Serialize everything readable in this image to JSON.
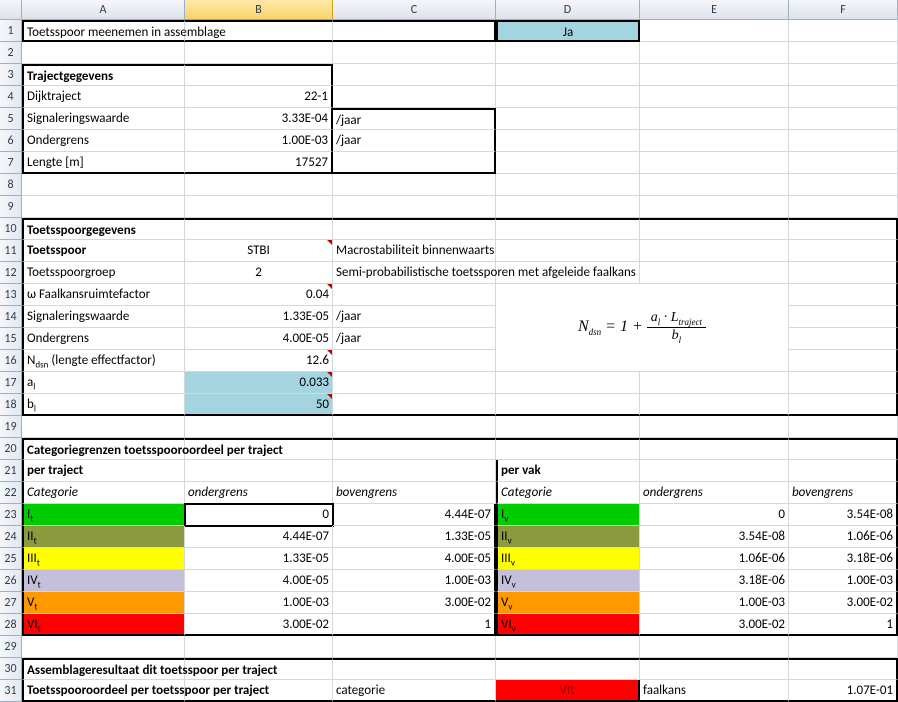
{
  "columns": [
    "",
    "A",
    "B",
    "C",
    "D",
    "E",
    "F"
  ],
  "row1": {
    "A": "Toetsspoor meenemen in assemblage",
    "D": "Ja"
  },
  "row3": {
    "A": "Trajectgegevens"
  },
  "row4": {
    "A": "Dijktraject",
    "B": "22-1"
  },
  "row5": {
    "A": "Signaleringswaarde",
    "B": "3.33E-04",
    "C": "/jaar"
  },
  "row6": {
    "A": "Ondergrens",
    "B": "1.00E-03",
    "C": "/jaar"
  },
  "row7": {
    "A": "Lengte [m]",
    "B": "17527"
  },
  "row10": {
    "A": "Toetsspoorgegevens"
  },
  "row11": {
    "A": "Toetsspoor",
    "B": "STBI",
    "C": "Macrostabiliteit binnenwaarts"
  },
  "row12": {
    "A": "Toetsspoorgroep",
    "B": "2",
    "C": "Semi-probabilistische toetssporen met afgeleide faalkans"
  },
  "row13": {
    "A": "ω Faalkansruimtefactor",
    "B": "0.04"
  },
  "row14": {
    "A": "Signaleringswaarde",
    "B": "1.33E-05",
    "C": "/jaar"
  },
  "row15": {
    "A": "Ondergrens",
    "B": "4.00E-05",
    "C": "/jaar"
  },
  "row16": {
    "A_pre": "N",
    "A_sub": "dsn",
    "A_post": " (lengte effectfactor)",
    "B": "12.6"
  },
  "row17": {
    "A_pre": "a",
    "A_sub": "l",
    "B": "0.033"
  },
  "row18": {
    "A_pre": "b",
    "A_sub": "l",
    "B": "50"
  },
  "row20": {
    "A": "Categoriegrenzen toetsspooroordeel per traject"
  },
  "row21": {
    "A": "per traject",
    "D": "per vak"
  },
  "row22": {
    "A": "Categorie",
    "B": "ondergrens",
    "C": "bovengrens",
    "D": "Categorie",
    "E": "ondergrens",
    "F": "bovengrens"
  },
  "cats": [
    {
      "t": "I",
      "sub": "t",
      "og": "0",
      "bg": "4.44E-07",
      "v": "I",
      "vsub": "v",
      "vog": "0",
      "vbg": "3.54E-08",
      "color_t": "bg-green",
      "color_v": "bg-green"
    },
    {
      "t": "II",
      "sub": "t",
      "og": "4.44E-07",
      "bg": "1.33E-05",
      "v": "II",
      "vsub": "v",
      "vog": "3.54E-08",
      "vbg": "1.06E-06",
      "color_t": "bg-olive",
      "color_v": "bg-olive"
    },
    {
      "t": "III",
      "sub": "t",
      "og": "1.33E-05",
      "bg": "4.00E-05",
      "v": "III",
      "vsub": "v",
      "vog": "1.06E-06",
      "vbg": "3.18E-06",
      "color_t": "bg-yellow",
      "color_v": "bg-yellow"
    },
    {
      "t": "IV",
      "sub": "t",
      "og": "4.00E-05",
      "bg": "1.00E-03",
      "v": "IV",
      "vsub": "v",
      "vog": "3.18E-06",
      "vbg": "1.00E-03",
      "color_t": "bg-lav",
      "color_v": "bg-lav"
    },
    {
      "t": "V",
      "sub": "t",
      "og": "1.00E-03",
      "bg": "3.00E-02",
      "v": "V",
      "vsub": "v",
      "vog": "1.00E-03",
      "vbg": "3.00E-02",
      "color_t": "bg-orange",
      "color_v": "bg-orange"
    },
    {
      "t": "VI",
      "sub": "t",
      "og": "3.00E-02",
      "bg": "1",
      "v": "VI",
      "vsub": "v",
      "vog": "3.00E-02",
      "vbg": "1",
      "color_t": "bg-red",
      "color_v": "bg-red"
    }
  ],
  "row30": {
    "A": "Assemblageresultaat dit toetsspoor per traject"
  },
  "row31": {
    "A": "Toetsspooroordeel per toetsspoor per traject",
    "C": "categorie",
    "D": "VIt",
    "E": "faalkans",
    "F": "1.07E-01"
  },
  "formula": {
    "pre": "N",
    "presub": "dsn",
    "eq": " = 1 + ",
    "num_a": "a",
    "num_asub": "l",
    "dot": " · ",
    "num_L": "L",
    "num_Lsub": "traject",
    "den_b": "b",
    "den_bsub": "l"
  }
}
